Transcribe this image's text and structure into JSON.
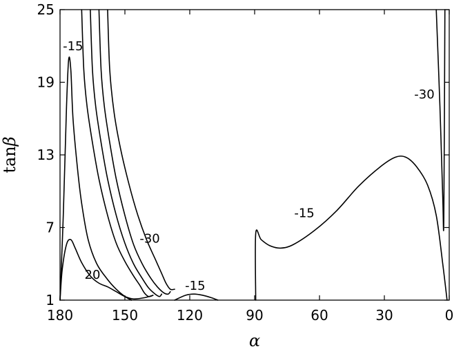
{
  "chart_data": {
    "type": "line",
    "title": "",
    "xlabel": "α",
    "ylabel_prefix": "tan",
    "ylabel_symbol": "β",
    "xlim": [
      180,
      0
    ],
    "ylim": [
      1,
      25
    ],
    "xticks": [
      180,
      150,
      120,
      90,
      60,
      30,
      0
    ],
    "yticks": [
      1,
      7,
      13,
      19,
      25
    ],
    "xtick_labels": [
      "180",
      "150",
      "120",
      "90",
      "60",
      "30",
      "0"
    ],
    "ytick_labels": [
      "1",
      "7",
      "13",
      "19",
      "25"
    ],
    "grid": false,
    "series": [
      {
        "points": [
          [
            180,
            1
          ],
          [
            178.5,
            8
          ],
          [
            177,
            17
          ],
          [
            176,
            20.9
          ],
          [
            175,
            20
          ],
          [
            174,
            16
          ],
          [
            172,
            12
          ],
          [
            170,
            9
          ],
          [
            167,
            6
          ],
          [
            163,
            4
          ],
          [
            158,
            2.7
          ],
          [
            154,
            1.9
          ],
          [
            150,
            1.3
          ],
          [
            147,
            1
          ]
        ]
      },
      {
        "points": [
          [
            180,
            1
          ],
          [
            179,
            3.5
          ],
          [
            177,
            5.6
          ],
          [
            175,
            6
          ],
          [
            173,
            5.3
          ],
          [
            170,
            4.1
          ],
          [
            166,
            3
          ],
          [
            162,
            2.4
          ],
          [
            158,
            2.1
          ],
          [
            154,
            1.7
          ],
          [
            150,
            1.3
          ],
          [
            146,
            1.1
          ],
          [
            141,
            1.2
          ],
          [
            137,
            1.4
          ]
        ]
      },
      {
        "points": [
          [
            170,
            25
          ],
          [
            169,
            20
          ],
          [
            167.5,
            17
          ],
          [
            165,
            14
          ],
          [
            162,
            11
          ],
          [
            158,
            8
          ],
          [
            154,
            5.7
          ],
          [
            150,
            4.2
          ],
          [
            146,
            3
          ],
          [
            143,
            2.2
          ],
          [
            141,
            1.6
          ],
          [
            139,
            1.3
          ],
          [
            137,
            1.4
          ]
        ]
      },
      {
        "points": [
          [
            166,
            25
          ],
          [
            165,
            20
          ],
          [
            163.5,
            17
          ],
          [
            161,
            14
          ],
          [
            158,
            11
          ],
          [
            154,
            8
          ],
          [
            150,
            5.7
          ],
          [
            146,
            4
          ],
          [
            142,
            2.8
          ],
          [
            139,
            2
          ],
          [
            136,
            1.5
          ],
          [
            134,
            1.3
          ],
          [
            133,
            1.5
          ]
        ]
      },
      {
        "points": [
          [
            162,
            25
          ],
          [
            161,
            20
          ],
          [
            159.5,
            17
          ],
          [
            157,
            14
          ],
          [
            154,
            11
          ],
          [
            150,
            8
          ],
          [
            146,
            5.6
          ],
          [
            142,
            4
          ],
          [
            138,
            2.8
          ],
          [
            135,
            2.1
          ],
          [
            132,
            1.6
          ],
          [
            130,
            1.5
          ],
          [
            129,
            1.7
          ]
        ]
      },
      {
        "points": [
          [
            158,
            25
          ],
          [
            157,
            20
          ],
          [
            155,
            16.5
          ],
          [
            152,
            13.5
          ],
          [
            148,
            10.5
          ],
          [
            144,
            8
          ],
          [
            140,
            6
          ],
          [
            136,
            4.4
          ],
          [
            133,
            3.2
          ],
          [
            131,
            2.4
          ],
          [
            129,
            1.9
          ],
          [
            127,
            1.9
          ]
        ]
      },
      {
        "points": [
          [
            127,
            1
          ],
          [
            122,
            1.4
          ],
          [
            118,
            1.5
          ],
          [
            114,
            1.4
          ],
          [
            110,
            1.2
          ],
          [
            107,
            1
          ]
        ]
      },
      {
        "points": [
          [
            89.5,
            1
          ],
          [
            89.5,
            6.5
          ],
          [
            87,
            6
          ],
          [
            83,
            5.5
          ],
          [
            78,
            5.3
          ],
          [
            72,
            5.6
          ],
          [
            62,
            6.8
          ],
          [
            52,
            8.4
          ],
          [
            42,
            10.4
          ],
          [
            32,
            12
          ],
          [
            25,
            12.8
          ],
          [
            20,
            12.8
          ],
          [
            15,
            12
          ],
          [
            10,
            10.5
          ],
          [
            6,
            8
          ],
          [
            3,
            4
          ],
          [
            1,
            1
          ]
        ]
      },
      {
        "points": [
          [
            6,
            25
          ],
          [
            4.3,
            17
          ],
          [
            3,
            9.5
          ],
          [
            2.5,
            7.8
          ],
          [
            2,
            25
          ]
        ]
      }
    ],
    "annotations": [
      {
        "text": "-15",
        "x": 174,
        "y": 22
      },
      {
        "text": "-30",
        "x": 138.5,
        "y": 6.1
      },
      {
        "text": "20",
        "x": 165,
        "y": 3.1
      },
      {
        "text": "-15",
        "x": 117.5,
        "y": 2.2
      },
      {
        "text": "-15",
        "x": 67,
        "y": 8.2
      },
      {
        "text": "-30",
        "x": 11.5,
        "y": 18
      }
    ]
  }
}
